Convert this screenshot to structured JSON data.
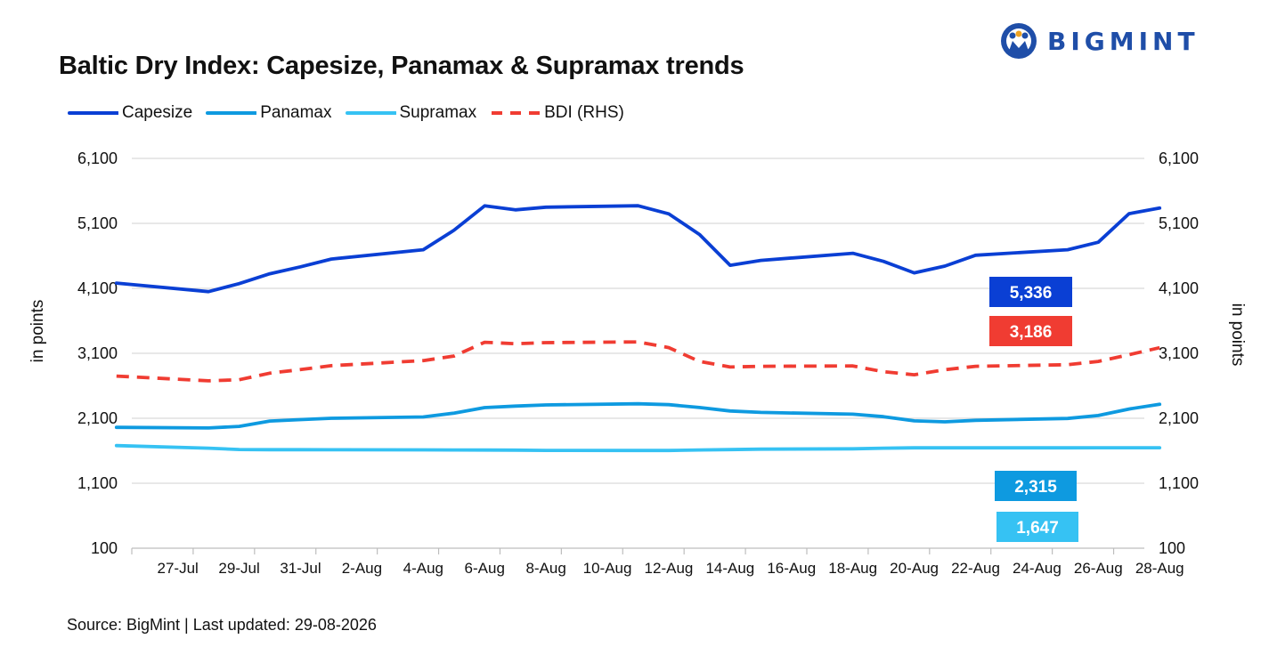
{
  "header": {
    "title": "Baltic Dry Index: Capesize, Panamax & Supramax trends",
    "logo_text": "BIGMINT"
  },
  "footer": {
    "source": "Source: BigMint | Last updated: 29-08-2026"
  },
  "chart_data": {
    "type": "line",
    "title": "Baltic Dry Index: Capesize, Panamax & Supramax trends",
    "ylabel": "in points",
    "y2label": "in points",
    "ylim": [
      100,
      6100
    ],
    "y2lim": [
      100,
      6100
    ],
    "yticks": [
      "6,100",
      "5,100",
      "4,100",
      "3,100",
      "2,100",
      "1,100",
      "100"
    ],
    "grid": true,
    "legend_position": "top-left",
    "x_labels": [
      "27-Jul",
      "29-Jul",
      "31-Jul",
      "2-Aug",
      "4-Aug",
      "6-Aug",
      "8-Aug",
      "10-Aug",
      "12-Aug",
      "14-Aug",
      "16-Aug",
      "18-Aug",
      "20-Aug",
      "22-Aug",
      "24-Aug",
      "26-Aug",
      "28-Aug"
    ],
    "x": [
      "25-Jul",
      "28-Jul",
      "29-Jul",
      "30-Jul",
      "31-Jul",
      "1-Aug",
      "4-Aug",
      "5-Aug",
      "6-Aug",
      "7-Aug",
      "8-Aug",
      "11-Aug",
      "12-Aug",
      "13-Aug",
      "14-Aug",
      "15-Aug",
      "18-Aug",
      "19-Aug",
      "20-Aug",
      "21-Aug",
      "22-Aug",
      "25-Aug",
      "26-Aug",
      "27-Aug",
      "28-Aug"
    ],
    "series": [
      {
        "name": "Capesize",
        "axis": "left",
        "color": "#0a3fd4",
        "dash": "solid",
        "values": [
          4181,
          4049,
          4172,
          4325,
          4431,
          4550,
          4695,
          4995,
          5370,
          5308,
          5350,
          5371,
          5246,
          4930,
          4455,
          4530,
          4640,
          4515,
          4339,
          4443,
          4610,
          4694,
          4810,
          5250,
          5336
        ]
      },
      {
        "name": "Panamax",
        "axis": "left",
        "color": "#0e9ae0",
        "dash": "solid",
        "values": [
          1960,
          1951,
          1976,
          2057,
          2079,
          2100,
          2120,
          2180,
          2265,
          2288,
          2305,
          2323,
          2310,
          2266,
          2212,
          2190,
          2163,
          2124,
          2060,
          2045,
          2068,
          2097,
          2143,
          2242,
          2315
        ]
      },
      {
        "name": "Supramax",
        "axis": "left",
        "color": "#36c2f3",
        "dash": "solid",
        "values": [
          1680,
          1640,
          1619,
          1617,
          1617,
          1615,
          1614,
          1613,
          1611,
          1609,
          1606,
          1604,
          1604,
          1612,
          1618,
          1625,
          1630,
          1640,
          1645,
          1645,
          1645,
          1645,
          1646,
          1647,
          1647
        ]
      },
      {
        "name": "BDI (RHS)",
        "axis": "right",
        "color": "#f03c32",
        "dash": "dashed",
        "values": [
          2750,
          2677,
          2693,
          2795,
          2850,
          2910,
          2987,
          3057,
          3270,
          3248,
          3265,
          3275,
          3188,
          2975,
          2889,
          2900,
          2905,
          2816,
          2770,
          2848,
          2900,
          2925,
          2975,
          3078,
          3186
        ]
      }
    ],
    "end_labels": [
      {
        "series": "Capesize",
        "text": "5,336",
        "color": "#0a3fd4"
      },
      {
        "series": "BDI (RHS)",
        "text": "3,186",
        "color": "#f03c32"
      },
      {
        "series": "Panamax",
        "text": "2,315",
        "color": "#0e9ae0"
      },
      {
        "series": "Supramax",
        "text": "1,647",
        "color": "#36c2f3"
      }
    ]
  }
}
